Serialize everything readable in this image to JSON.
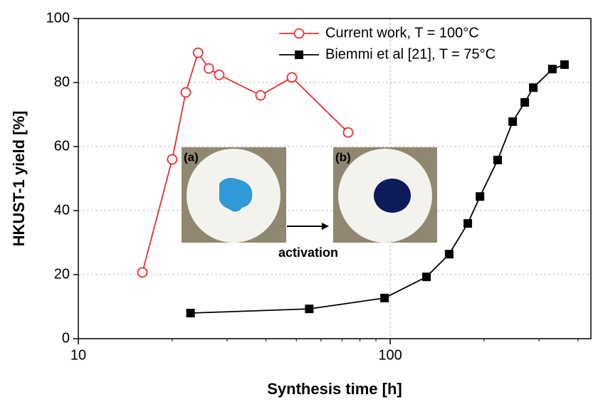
{
  "chart_data": {
    "type": "line",
    "x_label": "Synthesis time [h]",
    "y_label": "HKUST-1 yield [%]",
    "xscale": "log",
    "xlim": [
      10,
      440
    ],
    "ylim": [
      0,
      100
    ],
    "xticks": [
      10,
      100
    ],
    "yticks": [
      0,
      20,
      40,
      60,
      80,
      100
    ],
    "grid": true,
    "legend": "top",
    "series": [
      {
        "name": "Current work, T = 100°C",
        "color": "#e8312f",
        "marker": "open-circle",
        "x": [
          16.05,
          20.0,
          22.1,
          24.2,
          26.2,
          28.3,
          38.4,
          48.4,
          73.3
        ],
        "values": [
          20.7,
          56.0,
          76.9,
          89.3,
          84.4,
          82.4,
          76.0,
          81.6,
          64.4
        ]
      },
      {
        "name": "Biemmi et al [21], T = 75°C",
        "color": "#000000",
        "marker": "square",
        "x": [
          22.9,
          55.0,
          95.9,
          130.7,
          154.5,
          177.3,
          194,
          221,
          247,
          270,
          287.5,
          331,
          362
        ],
        "values": [
          8.0,
          9.3,
          12.7,
          19.3,
          26.4,
          36.0,
          44.4,
          55.8,
          67.8,
          73.8,
          78.4,
          84.2,
          85.6
        ]
      }
    ],
    "annotations": [
      "(a)",
      "(b)",
      "activation"
    ]
  }
}
